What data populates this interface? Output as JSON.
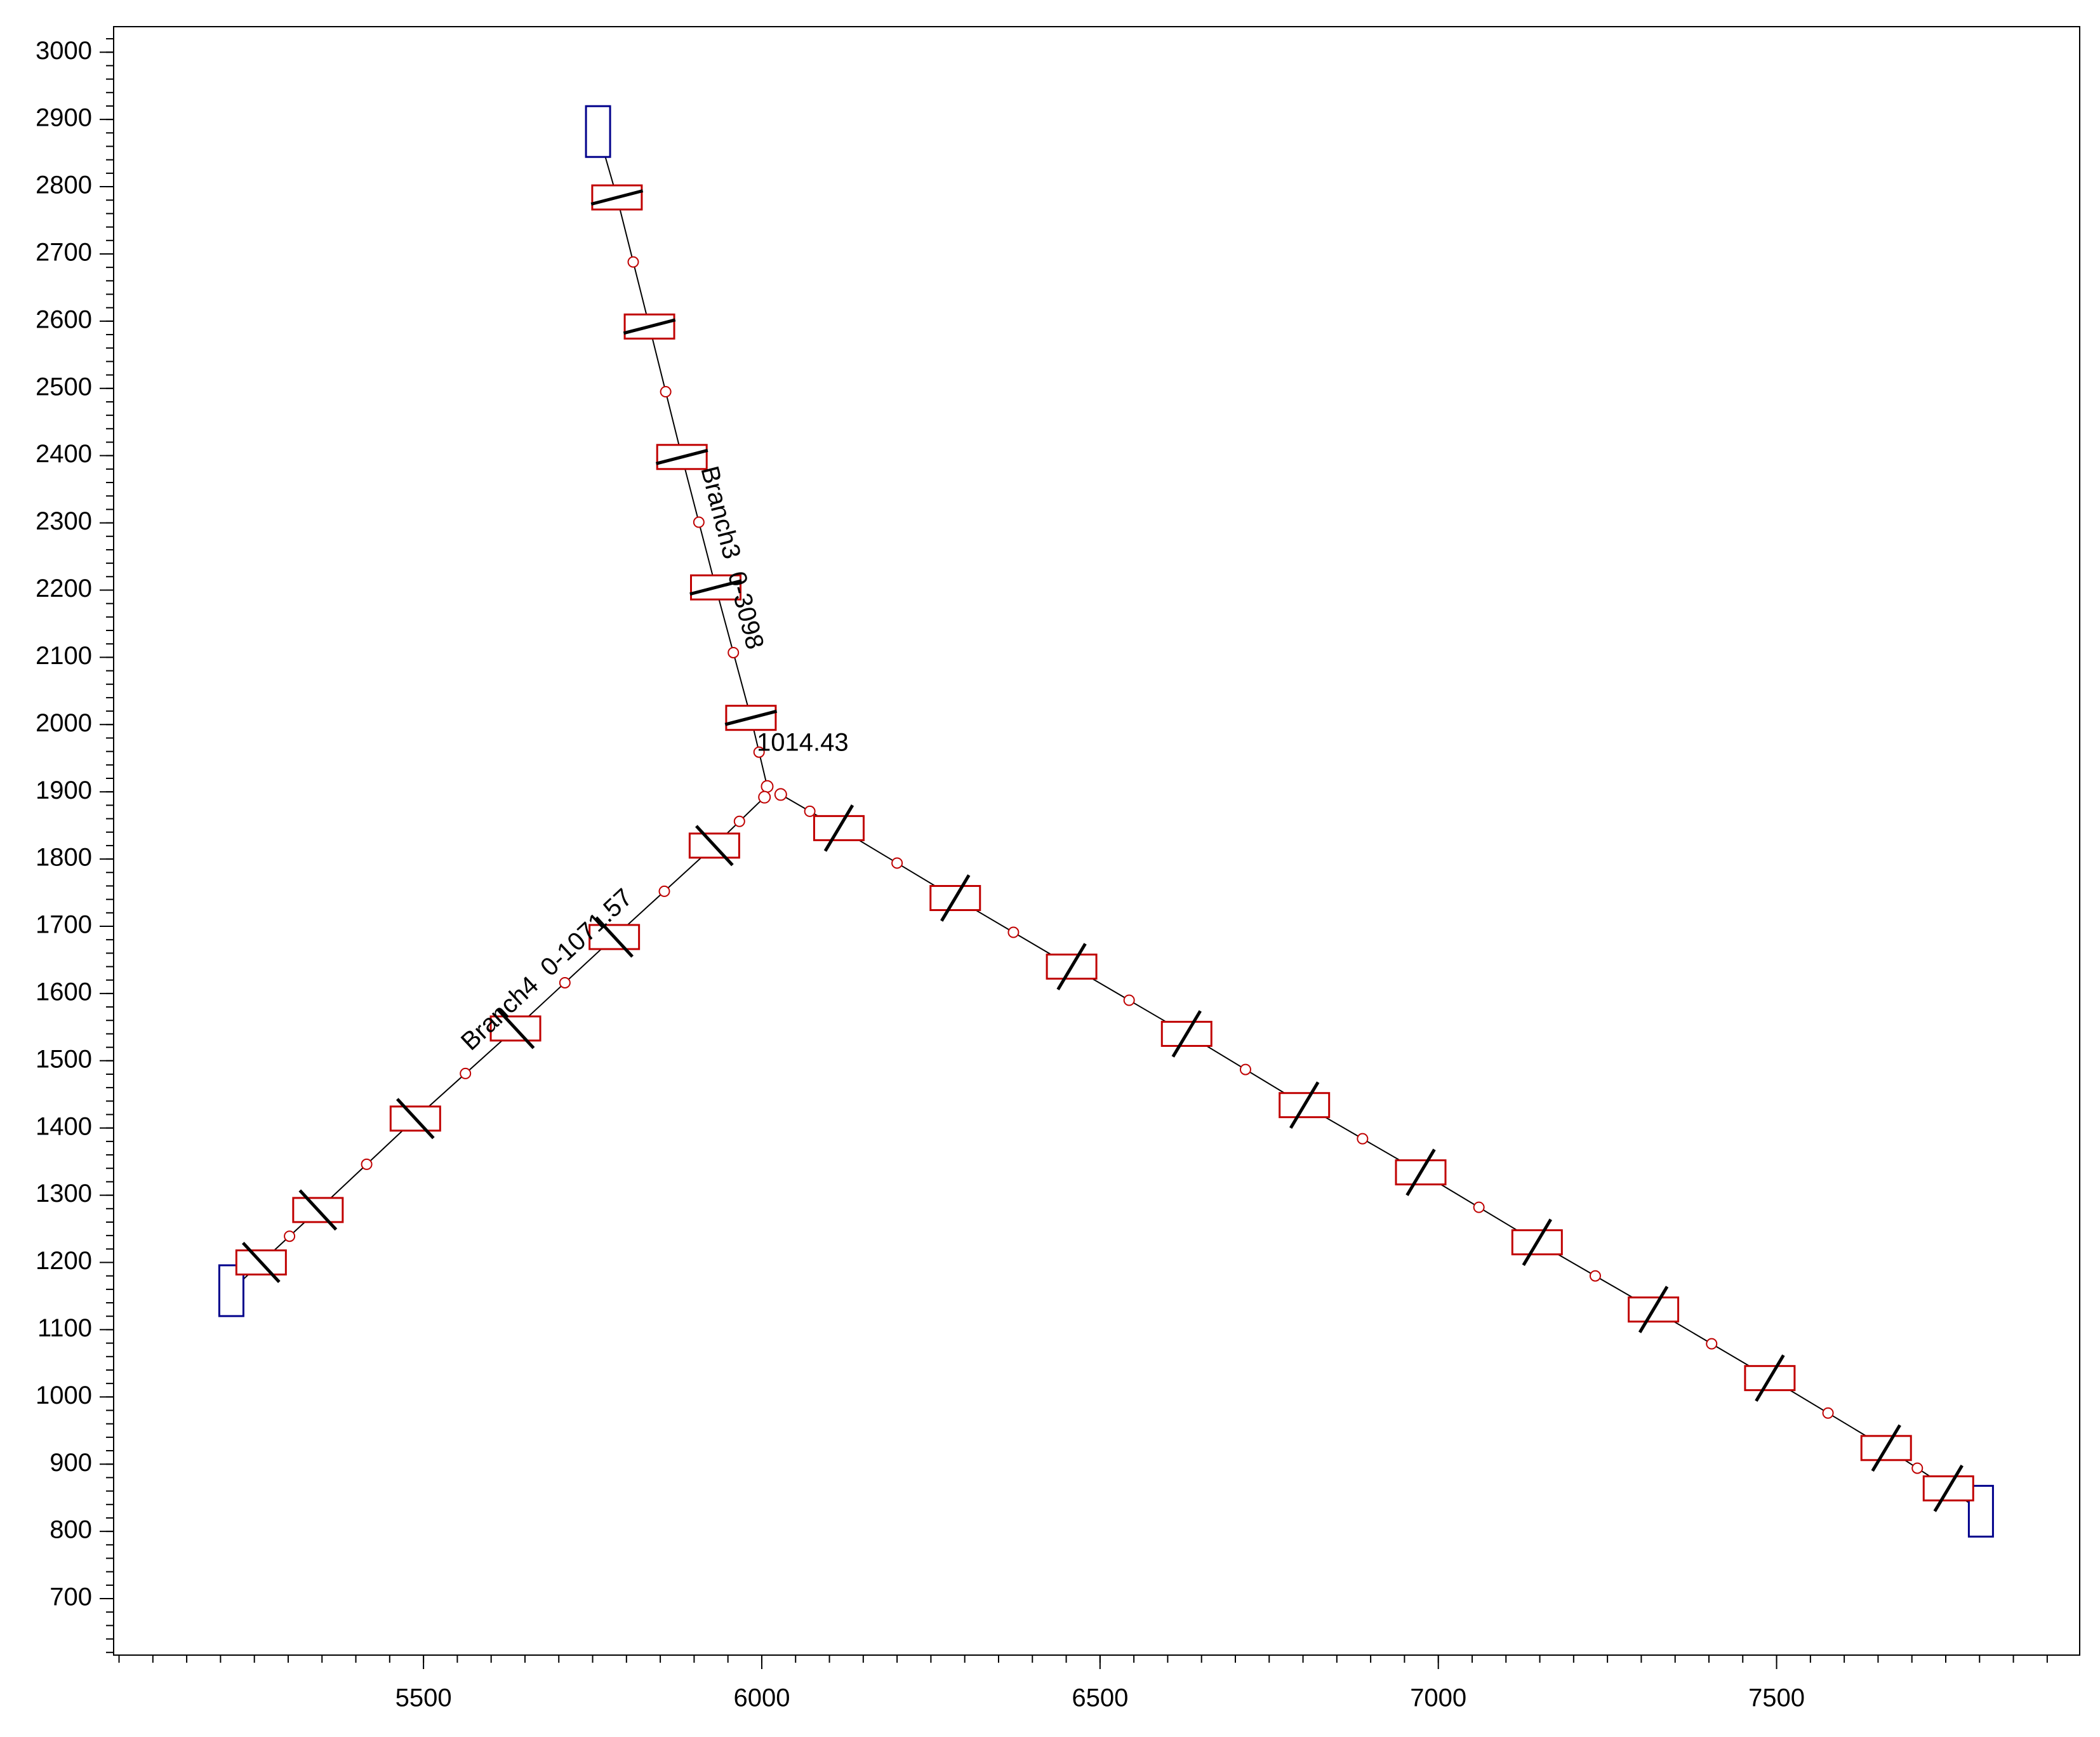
{
  "chart_data": {
    "type": "network",
    "xlim": [
      5042,
      7948
    ],
    "ylim": [
      616,
      3038
    ],
    "xticks": [
      5500,
      6000,
      6500,
      7000,
      7500
    ],
    "yticks": [
      700,
      800,
      900,
      1000,
      1100,
      1200,
      1300,
      1400,
      1500,
      1600,
      1700,
      1800,
      1900,
      2000,
      2100,
      2200,
      2300,
      2400,
      2500,
      2600,
      2700,
      2800,
      2900,
      3000
    ],
    "line_color": "#000000",
    "equipment_color": "#c00000",
    "terminal_color": "#00008b",
    "annotations": [
      "1014.43"
    ],
    "series": [
      {
        "name": "Branch3  0-3098",
        "x": [
          5758,
          5786,
          5834,
          5882,
          5932,
          5984,
          6008
        ],
        "y": [
          2882,
          2784,
          2592,
          2398,
          2204,
          2010,
          1908
        ]
      },
      {
        "name": "Branch4  0-1071.57",
        "x": [
          5216,
          5260,
          5344,
          5488,
          5636,
          5782,
          5930,
          6004
        ],
        "y": [
          1158,
          1200,
          1278,
          1414,
          1548,
          1684,
          1820,
          1892
        ]
      },
      {
        "x": [
          7802,
          7754,
          7662,
          7490,
          7318,
          7146,
          6974,
          6802,
          6628,
          6458,
          6286,
          6114,
          6028
        ],
        "y": [
          830,
          864,
          924,
          1028,
          1130,
          1230,
          1334,
          1434,
          1540,
          1640,
          1742,
          1846,
          1896
        ]
      }
    ]
  }
}
